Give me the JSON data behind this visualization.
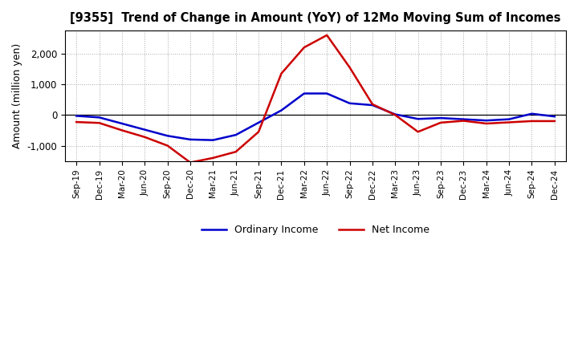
{
  "title": "[9355]  Trend of Change in Amount (YoY) of 12Mo Moving Sum of Incomes",
  "ylabel": "Amount (million yen)",
  "x_labels": [
    "Sep-19",
    "Dec-19",
    "Mar-20",
    "Jun-20",
    "Sep-20",
    "Dec-20",
    "Mar-21",
    "Jun-21",
    "Sep-21",
    "Dec-21",
    "Mar-22",
    "Jun-22",
    "Sep-22",
    "Dec-22",
    "Mar-23",
    "Jun-23",
    "Sep-23",
    "Dec-23",
    "Mar-24",
    "Jun-24",
    "Sep-24",
    "Dec-24"
  ],
  "ordinary_income": [
    -30,
    -80,
    -280,
    -480,
    -680,
    -800,
    -820,
    -650,
    -250,
    150,
    700,
    700,
    380,
    320,
    20,
    -130,
    -100,
    -140,
    -180,
    -140,
    40,
    -50
  ],
  "net_income": [
    -230,
    -260,
    -500,
    -720,
    -1000,
    -1550,
    -1400,
    -1200,
    -550,
    1350,
    2200,
    2600,
    1550,
    350,
    0,
    -550,
    -250,
    -190,
    -280,
    -240,
    -200,
    -200
  ],
  "ordinary_income_color": "#0000cc",
  "net_income_color": "#cc0000",
  "background_color": "#ffffff",
  "plot_bg_color": "#ffffff",
  "grid_color": "#aaaaaa",
  "ylim": [
    -1500,
    2750
  ],
  "yticks": [
    -1000,
    0,
    1000,
    2000
  ],
  "line_width": 1.8,
  "legend_labels": [
    "Ordinary Income",
    "Net Income"
  ]
}
